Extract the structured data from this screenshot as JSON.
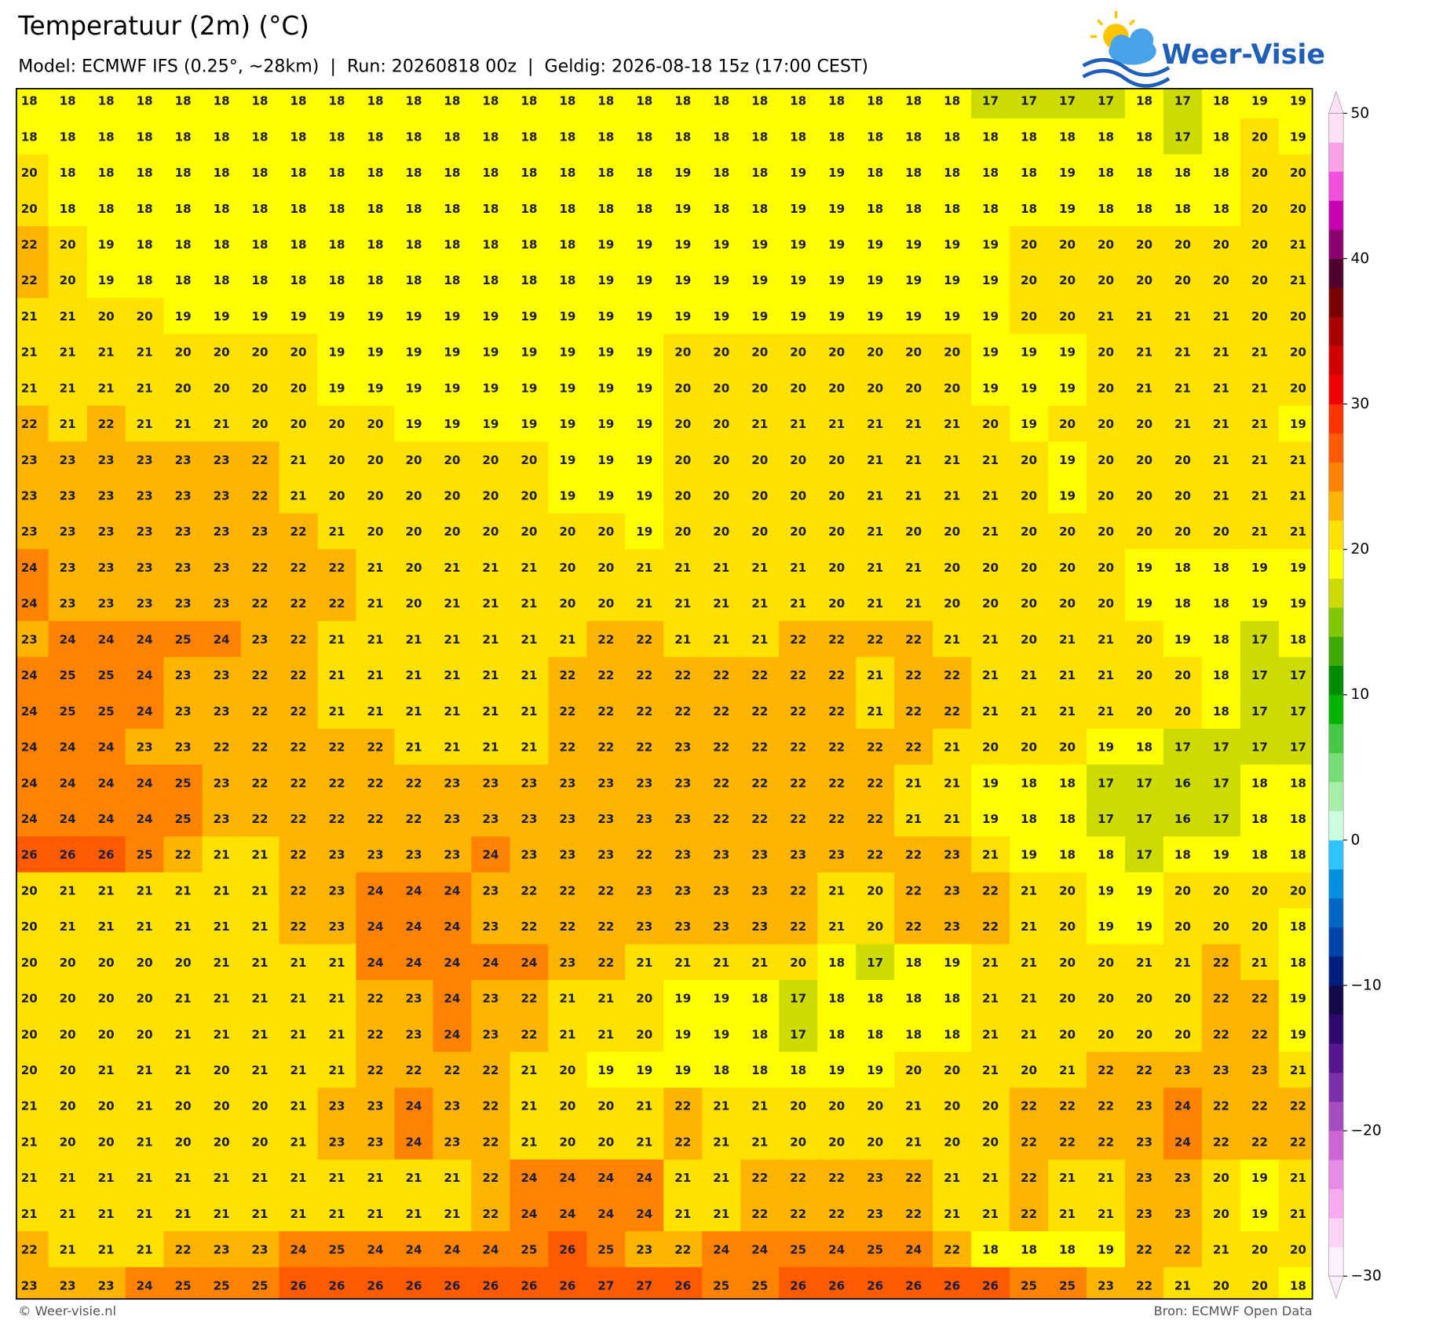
{
  "header": {
    "title": "Temperatuur (2m) (°C)",
    "subtitle": "Model: ECMWF IFS (0.25°, ~28km)  |  Run: 20260818 00z  |  Geldig: 2026-08-18 15z (17:00 CEST)",
    "brand": "Weer-Visie"
  },
  "map": {
    "grid": [
      [
        18,
        18,
        18,
        18,
        18,
        18,
        18,
        18,
        18,
        18,
        18,
        18,
        18,
        18,
        18,
        18,
        18,
        18,
        18,
        18,
        18,
        18,
        18,
        18,
        18,
        17,
        17,
        17,
        17,
        18,
        17,
        18,
        19,
        19
      ],
      [
        18,
        18,
        18,
        18,
        18,
        18,
        18,
        18,
        18,
        18,
        18,
        18,
        18,
        18,
        18,
        18,
        18,
        18,
        18,
        18,
        18,
        18,
        18,
        18,
        18,
        18,
        18,
        18,
        18,
        18,
        17,
        18,
        20,
        19
      ],
      [
        20,
        18,
        18,
        18,
        18,
        18,
        18,
        18,
        18,
        18,
        18,
        18,
        18,
        18,
        18,
        18,
        18,
        19,
        18,
        18,
        19,
        19,
        18,
        18,
        18,
        18,
        18,
        19,
        18,
        18,
        18,
        18,
        20,
        20
      ],
      [
        20,
        18,
        18,
        18,
        18,
        18,
        18,
        18,
        18,
        18,
        18,
        18,
        18,
        18,
        18,
        18,
        18,
        19,
        18,
        18,
        19,
        19,
        18,
        18,
        18,
        18,
        18,
        19,
        18,
        18,
        18,
        18,
        20,
        20
      ],
      [
        22,
        20,
        19,
        18,
        18,
        18,
        18,
        18,
        18,
        18,
        18,
        18,
        18,
        18,
        18,
        19,
        19,
        19,
        19,
        19,
        19,
        19,
        19,
        19,
        19,
        19,
        20,
        20,
        20,
        20,
        20,
        20,
        20,
        21
      ],
      [
        22,
        20,
        19,
        18,
        18,
        18,
        18,
        18,
        18,
        18,
        18,
        18,
        18,
        18,
        18,
        19,
        19,
        19,
        19,
        19,
        19,
        19,
        19,
        19,
        19,
        19,
        20,
        20,
        20,
        20,
        20,
        20,
        20,
        21
      ],
      [
        21,
        21,
        20,
        20,
        19,
        19,
        19,
        19,
        19,
        19,
        19,
        19,
        19,
        19,
        19,
        19,
        19,
        19,
        19,
        19,
        19,
        19,
        19,
        19,
        19,
        19,
        20,
        20,
        21,
        21,
        21,
        21,
        20,
        20
      ],
      [
        21,
        21,
        21,
        21,
        20,
        20,
        20,
        20,
        19,
        19,
        19,
        19,
        19,
        19,
        19,
        19,
        19,
        20,
        20,
        20,
        20,
        20,
        20,
        20,
        20,
        19,
        19,
        19,
        20,
        21,
        21,
        21,
        21,
        20
      ],
      [
        21,
        21,
        21,
        21,
        20,
        20,
        20,
        20,
        19,
        19,
        19,
        19,
        19,
        19,
        19,
        19,
        19,
        20,
        20,
        20,
        20,
        20,
        20,
        20,
        20,
        19,
        19,
        19,
        20,
        21,
        21,
        21,
        21,
        20
      ],
      [
        22,
        21,
        22,
        21,
        21,
        21,
        20,
        20,
        20,
        20,
        19,
        19,
        19,
        19,
        19,
        19,
        19,
        20,
        20,
        21,
        21,
        21,
        21,
        21,
        21,
        20,
        19,
        20,
        20,
        20,
        21,
        21,
        21,
        19
      ],
      [
        23,
        23,
        23,
        23,
        23,
        23,
        22,
        21,
        20,
        20,
        20,
        20,
        20,
        20,
        19,
        19,
        19,
        20,
        20,
        20,
        20,
        20,
        21,
        21,
        21,
        21,
        20,
        19,
        20,
        20,
        20,
        21,
        21,
        21
      ],
      [
        23,
        23,
        23,
        23,
        23,
        23,
        22,
        21,
        20,
        20,
        20,
        20,
        20,
        20,
        19,
        19,
        19,
        20,
        20,
        20,
        20,
        20,
        21,
        21,
        21,
        21,
        20,
        19,
        20,
        20,
        20,
        21,
        21,
        21
      ],
      [
        23,
        23,
        23,
        23,
        23,
        23,
        23,
        22,
        21,
        20,
        20,
        20,
        20,
        20,
        20,
        20,
        19,
        20,
        20,
        20,
        20,
        20,
        21,
        20,
        20,
        21,
        20,
        20,
        20,
        20,
        20,
        20,
        21,
        21
      ],
      [
        24,
        23,
        23,
        23,
        23,
        23,
        22,
        22,
        22,
        21,
        20,
        21,
        21,
        21,
        20,
        20,
        21,
        21,
        21,
        21,
        21,
        20,
        21,
        21,
        20,
        20,
        20,
        20,
        20,
        19,
        18,
        18,
        19,
        19
      ],
      [
        24,
        23,
        23,
        23,
        23,
        23,
        22,
        22,
        22,
        21,
        20,
        21,
        21,
        21,
        20,
        20,
        21,
        21,
        21,
        21,
        21,
        20,
        21,
        21,
        20,
        20,
        20,
        20,
        20,
        19,
        18,
        18,
        19,
        19
      ],
      [
        23,
        24,
        24,
        24,
        25,
        24,
        23,
        22,
        21,
        21,
        21,
        21,
        21,
        21,
        21,
        22,
        22,
        21,
        21,
        21,
        22,
        22,
        22,
        22,
        21,
        21,
        20,
        21,
        21,
        20,
        19,
        18,
        17,
        18
      ],
      [
        24,
        25,
        25,
        24,
        23,
        23,
        22,
        22,
        21,
        21,
        21,
        21,
        21,
        21,
        22,
        22,
        22,
        22,
        22,
        22,
        22,
        22,
        21,
        22,
        22,
        21,
        21,
        21,
        21,
        20,
        20,
        18,
        17,
        17
      ],
      [
        24,
        25,
        25,
        24,
        23,
        23,
        22,
        22,
        21,
        21,
        21,
        21,
        21,
        21,
        22,
        22,
        22,
        22,
        22,
        22,
        22,
        22,
        21,
        22,
        22,
        21,
        21,
        21,
        21,
        20,
        20,
        18,
        17,
        17
      ],
      [
        24,
        24,
        24,
        23,
        23,
        22,
        22,
        22,
        22,
        22,
        21,
        21,
        21,
        21,
        22,
        22,
        22,
        23,
        22,
        22,
        22,
        22,
        22,
        22,
        21,
        20,
        20,
        20,
        19,
        18,
        17,
        17,
        17,
        17
      ],
      [
        24,
        24,
        24,
        24,
        25,
        23,
        22,
        22,
        22,
        22,
        22,
        23,
        23,
        23,
        23,
        23,
        23,
        23,
        22,
        22,
        22,
        22,
        22,
        21,
        21,
        19,
        18,
        18,
        17,
        17,
        16,
        17,
        18,
        18
      ],
      [
        24,
        24,
        24,
        24,
        25,
        23,
        22,
        22,
        22,
        22,
        22,
        23,
        23,
        23,
        23,
        23,
        23,
        23,
        22,
        22,
        22,
        22,
        22,
        21,
        21,
        19,
        18,
        18,
        17,
        17,
        16,
        17,
        18,
        18
      ],
      [
        26,
        26,
        26,
        25,
        22,
        21,
        21,
        22,
        23,
        23,
        23,
        23,
        24,
        23,
        23,
        23,
        22,
        23,
        23,
        23,
        23,
        23,
        22,
        22,
        23,
        21,
        19,
        18,
        18,
        17,
        18,
        19,
        18,
        18
      ],
      [
        20,
        21,
        21,
        21,
        21,
        21,
        21,
        22,
        23,
        24,
        24,
        24,
        23,
        22,
        22,
        22,
        23,
        23,
        23,
        23,
        22,
        21,
        20,
        22,
        23,
        22,
        21,
        20,
        19,
        19,
        20,
        20,
        20,
        20
      ],
      [
        20,
        21,
        21,
        21,
        21,
        21,
        21,
        22,
        23,
        24,
        24,
        24,
        23,
        22,
        22,
        22,
        23,
        23,
        23,
        23,
        22,
        21,
        20,
        22,
        23,
        22,
        21,
        20,
        19,
        19,
        20,
        20,
        20,
        18
      ],
      [
        20,
        20,
        20,
        20,
        20,
        21,
        21,
        21,
        21,
        24,
        24,
        24,
        24,
        24,
        23,
        22,
        21,
        21,
        21,
        21,
        20,
        18,
        17,
        18,
        19,
        21,
        21,
        20,
        20,
        21,
        21,
        22,
        21,
        18
      ],
      [
        20,
        20,
        20,
        20,
        21,
        21,
        21,
        21,
        21,
        22,
        23,
        24,
        23,
        22,
        21,
        21,
        20,
        19,
        19,
        18,
        17,
        18,
        18,
        18,
        18,
        21,
        21,
        20,
        20,
        20,
        20,
        22,
        22,
        19
      ],
      [
        20,
        20,
        20,
        20,
        21,
        21,
        21,
        21,
        21,
        22,
        23,
        24,
        23,
        22,
        21,
        21,
        20,
        19,
        19,
        18,
        17,
        18,
        18,
        18,
        18,
        21,
        21,
        20,
        20,
        20,
        20,
        22,
        22,
        19
      ],
      [
        20,
        20,
        21,
        21,
        21,
        20,
        21,
        21,
        21,
        22,
        22,
        22,
        22,
        21,
        20,
        19,
        19,
        19,
        18,
        18,
        18,
        19,
        19,
        20,
        20,
        21,
        20,
        21,
        22,
        22,
        23,
        23,
        23,
        21
      ],
      [
        21,
        20,
        20,
        21,
        20,
        20,
        20,
        21,
        23,
        23,
        24,
        23,
        22,
        21,
        20,
        20,
        21,
        22,
        21,
        21,
        20,
        20,
        20,
        21,
        20,
        20,
        22,
        22,
        22,
        23,
        24,
        22,
        22,
        22
      ],
      [
        21,
        20,
        20,
        21,
        20,
        20,
        20,
        21,
        23,
        23,
        24,
        23,
        22,
        21,
        20,
        20,
        21,
        22,
        21,
        21,
        20,
        20,
        20,
        21,
        20,
        20,
        22,
        22,
        22,
        23,
        24,
        22,
        22,
        22
      ],
      [
        21,
        21,
        21,
        21,
        21,
        21,
        21,
        21,
        21,
        21,
        21,
        21,
        22,
        24,
        24,
        24,
        24,
        21,
        21,
        22,
        22,
        22,
        23,
        22,
        21,
        21,
        22,
        21,
        21,
        23,
        23,
        20,
        19,
        21
      ],
      [
        21,
        21,
        21,
        21,
        21,
        21,
        21,
        21,
        21,
        21,
        21,
        21,
        22,
        24,
        24,
        24,
        24,
        21,
        21,
        22,
        22,
        22,
        23,
        22,
        21,
        21,
        22,
        21,
        21,
        23,
        23,
        20,
        19,
        21
      ],
      [
        22,
        21,
        21,
        21,
        22,
        23,
        23,
        24,
        25,
        24,
        24,
        24,
        24,
        25,
        26,
        25,
        23,
        22,
        24,
        24,
        25,
        24,
        25,
        24,
        22,
        18,
        18,
        18,
        19,
        22,
        22,
        21,
        20,
        20
      ],
      [
        23,
        23,
        23,
        24,
        25,
        25,
        25,
        26,
        26,
        26,
        26,
        26,
        26,
        26,
        26,
        27,
        27,
        26,
        25,
        25,
        26,
        26,
        26,
        26,
        26,
        26,
        25,
        25,
        23,
        22,
        21,
        20,
        20,
        18
      ]
    ]
  },
  "colorbar": {
    "lim": [
      -30,
      50
    ],
    "ticks": [
      {
        "value": -30,
        "label": "−30"
      },
      {
        "value": -20,
        "label": "−20"
      },
      {
        "value": -10,
        "label": "−10"
      },
      0,
      10,
      20,
      30,
      40,
      50
    ],
    "colors": [
      "#fdf0fd",
      "#fcd2f7",
      "#f8aaef",
      "#e68ce6",
      "#cc66d4",
      "#a64dc0",
      "#7a30a8",
      "#551690",
      "#2f0a6e",
      "#150a4a",
      "#00207f",
      "#0043a8",
      "#0066c4",
      "#0090de",
      "#30c4ff",
      "#ccffe0",
      "#a8eea8",
      "#78dc78",
      "#46c846",
      "#00b400",
      "#008c00",
      "#3caa00",
      "#82c800",
      "#cddc00",
      "#ffff00",
      "#ffe100",
      "#ffb400",
      "#ff8200",
      "#ff5a00",
      "#ff3200",
      "#f00000",
      "#d20000",
      "#aa0000",
      "#7a0000",
      "#50002d",
      "#8c0070",
      "#c800b4",
      "#f050dc",
      "#faa0e6",
      "#fde0f5"
    ]
  },
  "footer": {
    "left": "© Weer-visie.nl",
    "right": "Bron: ECMWF Open Data"
  }
}
